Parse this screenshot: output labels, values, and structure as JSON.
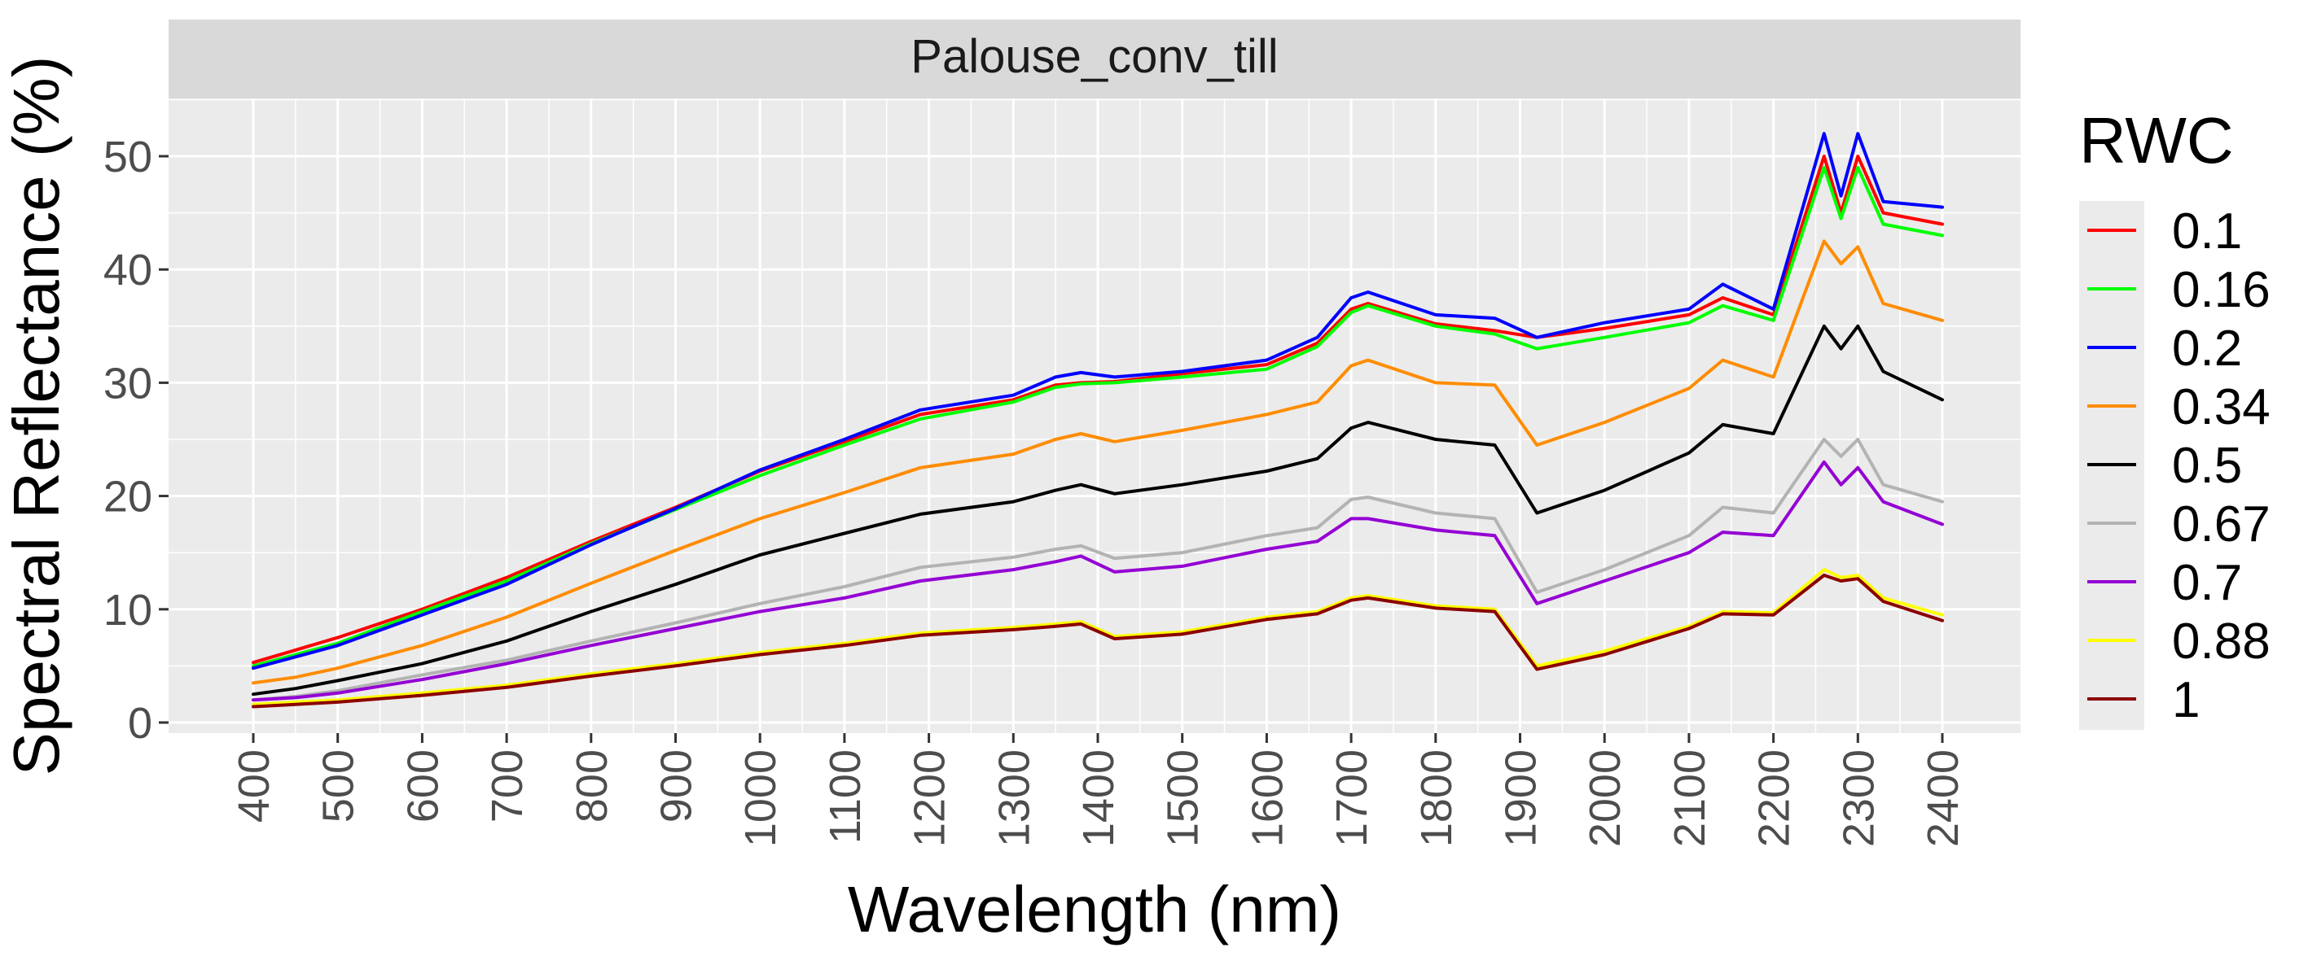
{
  "chart_data": {
    "type": "line",
    "facet_title": "Palouse_conv_till",
    "xlabel": "Wavelength (nm)",
    "ylabel": "Spectral Reflectance (%)",
    "xlim": [
      400,
      2400
    ],
    "ylim": [
      0,
      55
    ],
    "x_ticks": [
      400,
      500,
      600,
      700,
      800,
      900,
      1000,
      1100,
      1200,
      1300,
      1400,
      1500,
      1600,
      1700,
      1800,
      1900,
      2000,
      2100,
      2200,
      2300,
      2400
    ],
    "y_ticks": [
      0,
      10,
      20,
      30,
      40,
      50
    ],
    "grid": true,
    "legend": {
      "title": "RWC",
      "placement": "right"
    },
    "x": [
      400,
      450,
      500,
      600,
      700,
      800,
      900,
      1000,
      1100,
      1190,
      1300,
      1350,
      1380,
      1420,
      1500,
      1600,
      1660,
      1700,
      1720,
      1800,
      1870,
      1920,
      2000,
      2100,
      2140,
      2200,
      2260,
      2280,
      2300,
      2330,
      2400
    ],
    "series": [
      {
        "name": "0.1",
        "color": "#ff0000",
        "values": [
          5.3,
          6.4,
          7.5,
          10.0,
          12.8,
          16.0,
          19.0,
          22.2,
          24.8,
          27.2,
          28.5,
          29.8,
          30.0,
          30.1,
          30.8,
          31.6,
          33.5,
          36.5,
          37.0,
          35.2,
          34.6,
          34.0,
          34.8,
          36.0,
          37.5,
          36.0,
          50.0,
          45.0,
          50.0,
          45.0,
          44.0
        ]
      },
      {
        "name": "0.16",
        "color": "#00ff00",
        "values": [
          5.0,
          6.0,
          7.0,
          9.8,
          12.5,
          15.8,
          18.8,
          21.8,
          24.5,
          26.8,
          28.3,
          29.6,
          29.9,
          30.0,
          30.5,
          31.2,
          33.2,
          36.2,
          36.8,
          35.0,
          34.3,
          33.0,
          34.0,
          35.3,
          36.8,
          35.5,
          49.0,
          44.5,
          49.0,
          44.0,
          43.0
        ]
      },
      {
        "name": "0.2",
        "color": "#0000ff",
        "values": [
          4.8,
          5.8,
          6.8,
          9.5,
          12.2,
          15.7,
          18.9,
          22.3,
          25.0,
          27.6,
          28.9,
          30.5,
          30.9,
          30.5,
          31.0,
          32.0,
          34.0,
          37.5,
          38.0,
          36.0,
          35.7,
          34.0,
          35.3,
          36.5,
          38.7,
          36.5,
          52.0,
          46.5,
          52.0,
          46.0,
          45.5
        ]
      },
      {
        "name": "0.34",
        "color": "#ff8c00",
        "values": [
          3.5,
          4.0,
          4.8,
          6.8,
          9.3,
          12.3,
          15.2,
          18.0,
          20.3,
          22.5,
          23.7,
          25.0,
          25.5,
          24.8,
          25.8,
          27.2,
          28.3,
          31.5,
          32.0,
          30.0,
          29.8,
          24.5,
          26.5,
          29.5,
          32.0,
          30.5,
          42.5,
          40.5,
          42.0,
          37.0,
          35.5
        ]
      },
      {
        "name": "0.5",
        "color": "#000000",
        "values": [
          2.5,
          3.0,
          3.7,
          5.2,
          7.2,
          9.8,
          12.2,
          14.8,
          16.7,
          18.4,
          19.5,
          20.5,
          21.0,
          20.2,
          21.0,
          22.2,
          23.3,
          26.0,
          26.5,
          25.0,
          24.5,
          18.5,
          20.5,
          23.8,
          26.3,
          25.5,
          35.0,
          33.0,
          35.0,
          31.0,
          28.5
        ]
      },
      {
        "name": "0.67",
        "color": "#b3b3b3",
        "values": [
          2.0,
          2.3,
          2.8,
          4.2,
          5.5,
          7.2,
          8.8,
          10.5,
          12.0,
          13.7,
          14.6,
          15.3,
          15.6,
          14.5,
          15.0,
          16.5,
          17.2,
          19.7,
          19.9,
          18.5,
          18.0,
          11.5,
          13.5,
          16.5,
          19.0,
          18.5,
          25.0,
          23.5,
          25.0,
          21.0,
          19.5
        ]
      },
      {
        "name": "0.7",
        "color": "#9400d3",
        "values": [
          2.0,
          2.2,
          2.6,
          3.8,
          5.2,
          6.8,
          8.3,
          9.8,
          11.0,
          12.5,
          13.5,
          14.2,
          14.7,
          13.3,
          13.8,
          15.3,
          16.0,
          18.0,
          18.0,
          17.0,
          16.5,
          10.5,
          12.5,
          15.0,
          16.8,
          16.5,
          23.0,
          21.0,
          22.5,
          19.5,
          17.5
        ]
      },
      {
        "name": "0.88",
        "color": "#ffff00",
        "values": [
          1.6,
          1.8,
          2.0,
          2.6,
          3.3,
          4.3,
          5.2,
          6.2,
          7.0,
          7.9,
          8.4,
          8.7,
          8.9,
          7.6,
          8.0,
          9.3,
          9.8,
          11.0,
          11.2,
          10.3,
          10.0,
          5.0,
          6.3,
          8.5,
          9.8,
          9.7,
          13.5,
          12.8,
          13.0,
          11.0,
          9.5
        ]
      },
      {
        "name": "1",
        "color": "#8b0000",
        "values": [
          1.4,
          1.6,
          1.8,
          2.4,
          3.1,
          4.1,
          5.0,
          6.0,
          6.8,
          7.7,
          8.2,
          8.5,
          8.7,
          7.4,
          7.8,
          9.1,
          9.6,
          10.8,
          11.0,
          10.1,
          9.8,
          4.7,
          6.0,
          8.3,
          9.6,
          9.5,
          13.0,
          12.5,
          12.7,
          10.7,
          9.0
        ]
      }
    ]
  }
}
